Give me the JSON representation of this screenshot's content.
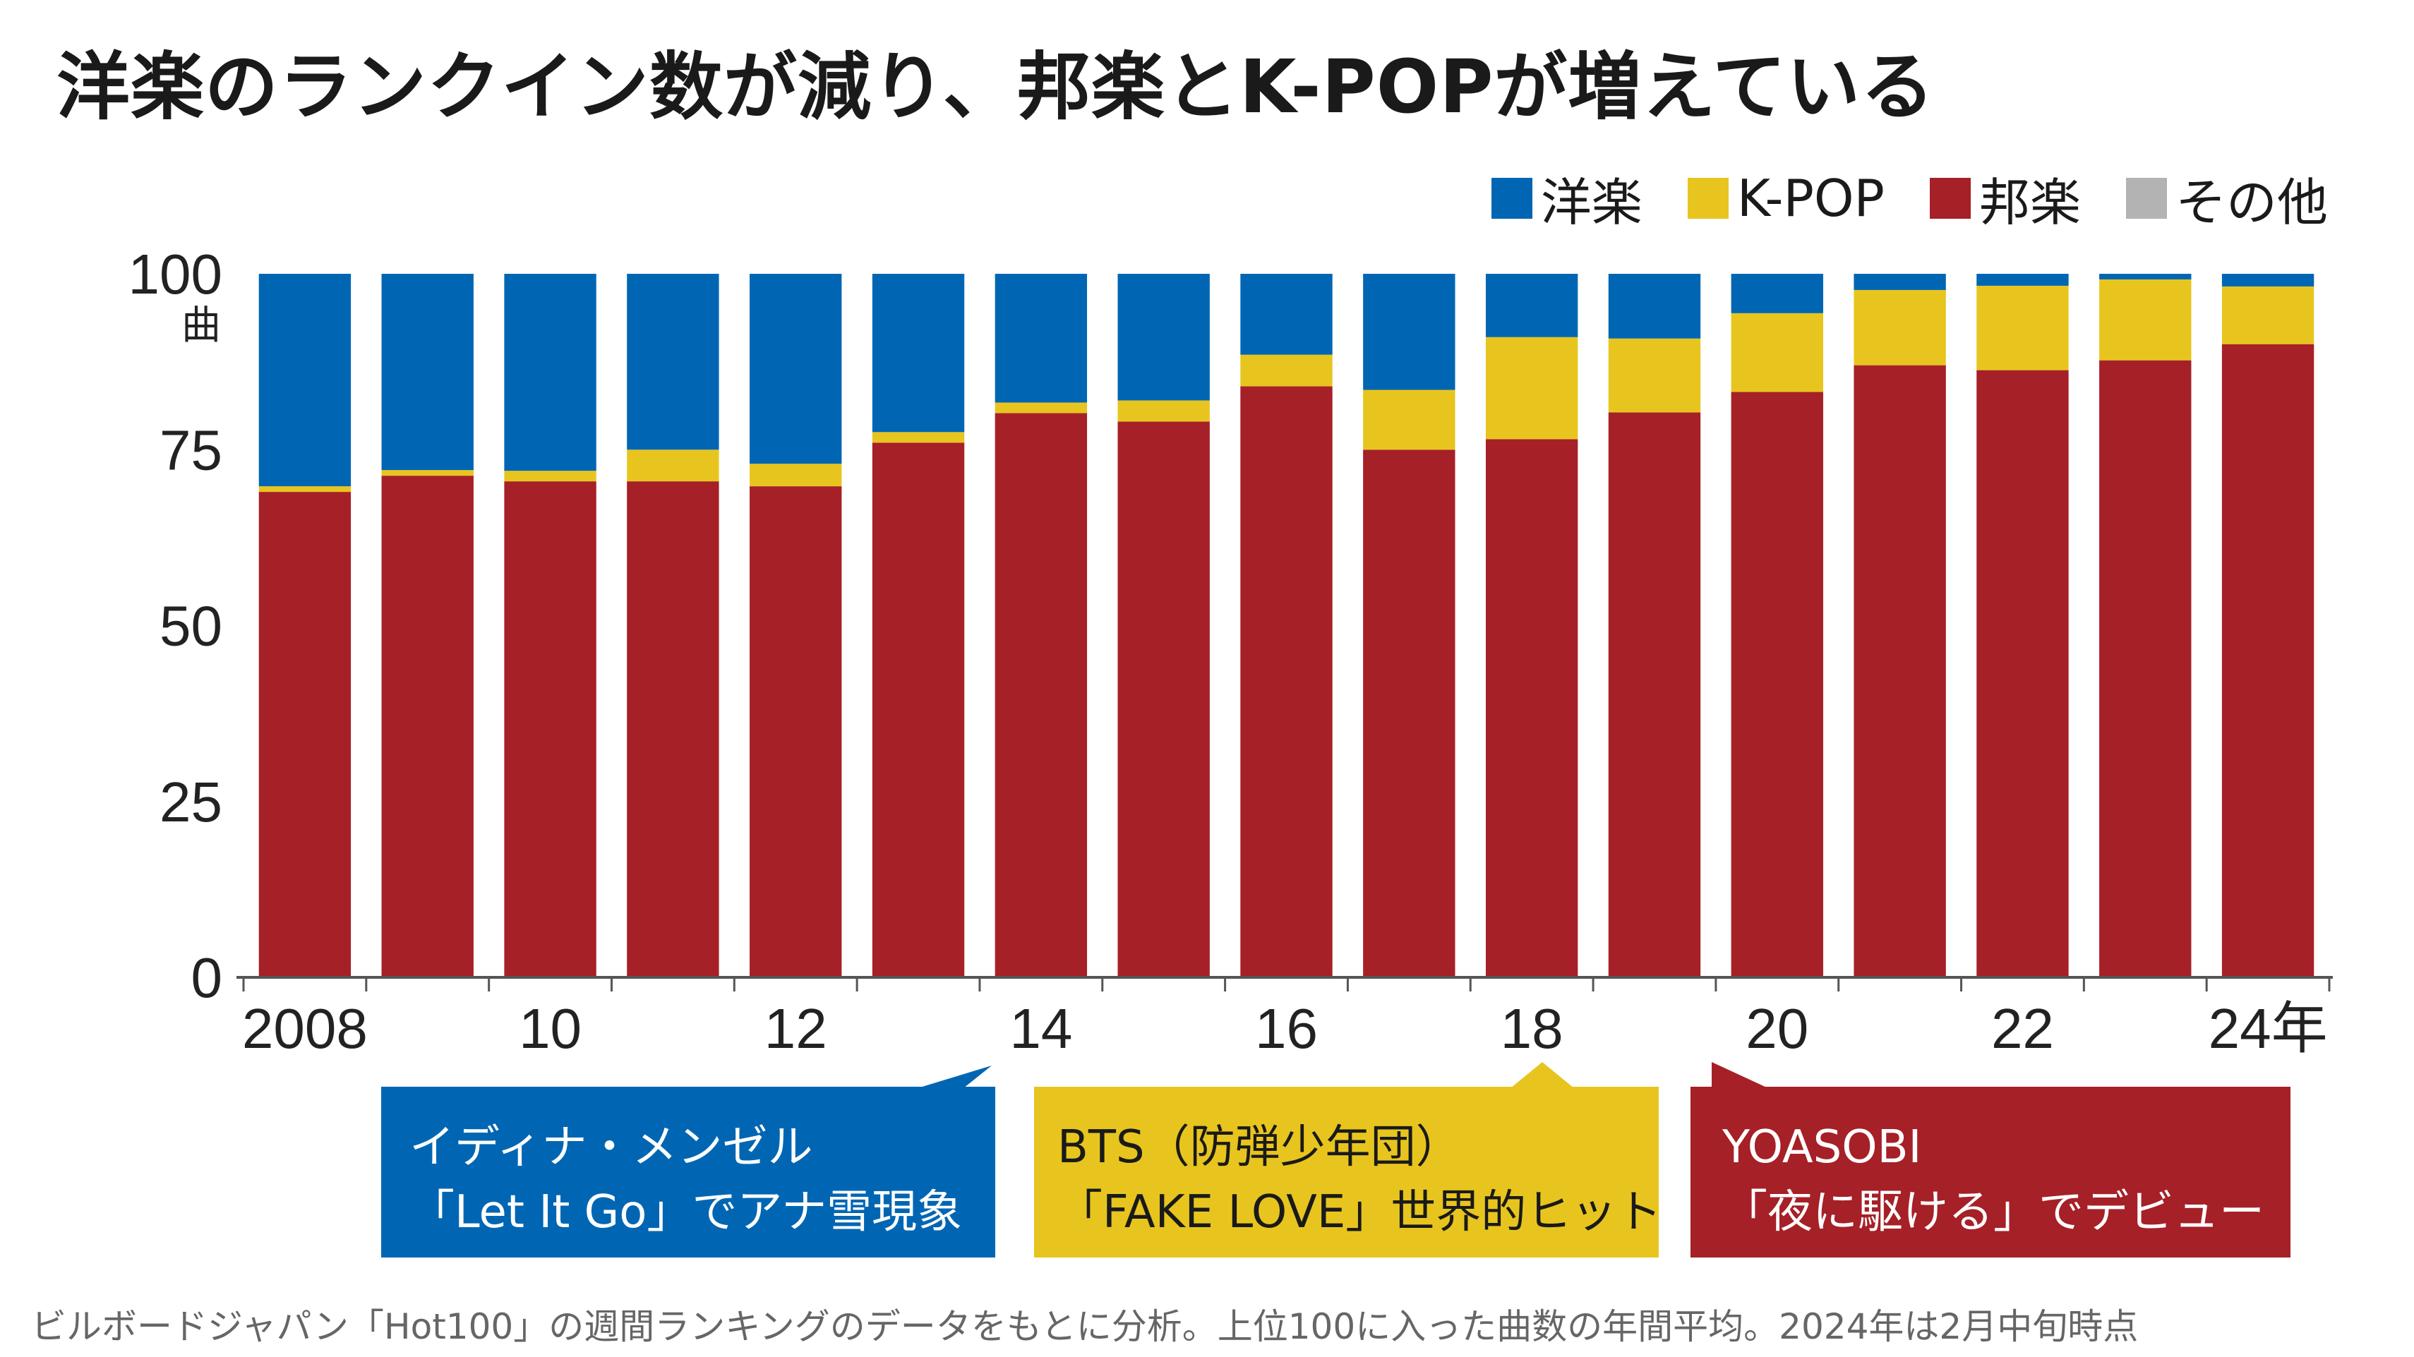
{
  "title": "洋楽のランクイン数が減り、邦楽とK-POPが増えている",
  "legend": [
    {
      "label": "洋楽",
      "color": "#0066b3"
    },
    {
      "label": "K-POP",
      "color": "#e8c51e"
    },
    {
      "label": "邦楽",
      "color": "#a62027"
    },
    {
      "label": "その他",
      "color": "#b3b3b3"
    }
  ],
  "chart_data": {
    "type": "bar",
    "stacked": true,
    "x": [
      2008,
      2009,
      2010,
      2011,
      2012,
      2013,
      2014,
      2015,
      2016,
      2017,
      2018,
      2019,
      2020,
      2021,
      2022,
      2023,
      2024
    ],
    "x_tick_labels": [
      "2008",
      "",
      "10",
      "",
      "12",
      "",
      "14",
      "",
      "16",
      "",
      "18",
      "",
      "20",
      "",
      "22",
      "",
      "24年"
    ],
    "y_unit": "曲",
    "y_ticks": [
      "100",
      "75",
      "50",
      "25",
      "0"
    ],
    "ylim": [
      0,
      100
    ],
    "series": [
      {
        "name": "邦楽",
        "color": "#a62027",
        "values": [
          69,
          71.3,
          70.5,
          70.5,
          69.8,
          76,
          80.2,
          79,
          84,
          75,
          76.5,
          80.3,
          83.2,
          87,
          86.3,
          87.7,
          90
        ]
      },
      {
        "name": "K-POP",
        "color": "#e8c51e",
        "values": [
          0.8,
          0.8,
          1.5,
          4.5,
          3.2,
          1.5,
          1.5,
          3,
          4.5,
          8.5,
          14.5,
          10.5,
          11.2,
          10.7,
          12,
          11.5,
          8.2
        ]
      },
      {
        "name": "洋楽",
        "color": "#0066b3",
        "values": [
          30.2,
          27.9,
          28,
          25,
          27,
          22.5,
          18.3,
          18,
          11.5,
          16.5,
          9,
          9.2,
          5.6,
          2.3,
          1.7,
          0.8,
          1.8
        ]
      },
      {
        "name": "その他",
        "color": "#b3b3b3",
        "values": [
          0,
          0,
          0,
          0,
          0,
          0,
          0,
          0,
          0,
          0,
          0,
          0,
          0,
          0,
          0,
          0,
          0
        ]
      }
    ]
  },
  "annotations": [
    {
      "line1": "イディナ・メンゼル",
      "line2": "「Let It Go」でアナ雪現象",
      "color": "#0066b3",
      "year": 2013.6
    },
    {
      "line1": "BTS（防弾少年団）",
      "line2": "「FAKE LOVE」世界的ヒット",
      "color": "#e8c51e",
      "year": 2018
    },
    {
      "line1": "YOASOBI",
      "line2": "「夜に駆ける」でデビュー",
      "color": "#a62027",
      "year": 2019.4
    }
  ],
  "footnote": "ビルボードジャパン「Hot100」の週間ランキングのデータをもとに分析。上位100に入った曲数の年間平均。2024年は2月中旬時点"
}
